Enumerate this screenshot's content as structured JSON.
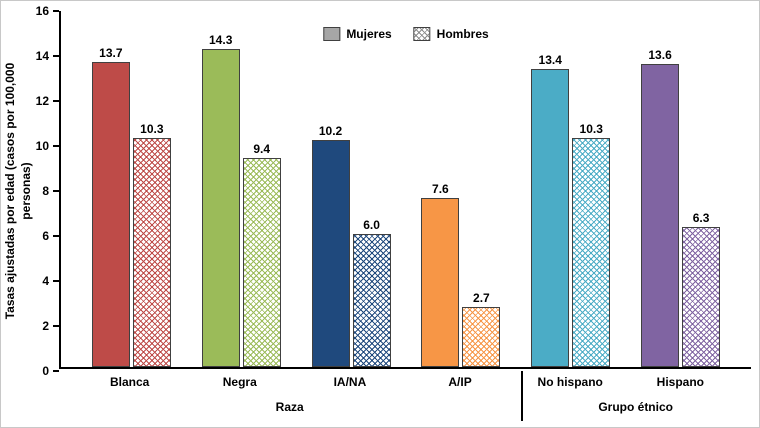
{
  "chart_data": {
    "type": "bar",
    "title": "",
    "ylabel": "Tasas ajustadas por edad (casos por 100,000 personas)",
    "xlabel": "",
    "ylim": [
      0,
      16
    ],
    "ytick_step": 2,
    "grid": false,
    "legend_position": "top-center",
    "legend": [
      "Mujeres",
      "Hombres"
    ],
    "categories": [
      "Blanca",
      "Negra",
      "IA/NA",
      "A/IP",
      "No hispano",
      "Hispano"
    ],
    "series": [
      {
        "name": "Mujeres",
        "style": "solid",
        "values": [
          13.7,
          14.3,
          10.2,
          7.6,
          13.4,
          13.6
        ]
      },
      {
        "name": "Hombres",
        "style": "hatched",
        "values": [
          10.3,
          9.4,
          6.0,
          2.7,
          10.3,
          6.3
        ]
      }
    ],
    "group_colors": [
      "#BE4B48",
      "#9BBB59",
      "#1F497D",
      "#F79646",
      "#4BACC6",
      "#8064A2"
    ],
    "sections": [
      {
        "label": "Raza",
        "categories": 4
      },
      {
        "label": "Grupo étnico",
        "categories": 2
      }
    ],
    "legend_swatch": {
      "mujeres_fill": "#A6A6A6",
      "hombres_hatch": "#8C8C8C",
      "border": "#404040"
    },
    "axis_color": "#000000"
  }
}
